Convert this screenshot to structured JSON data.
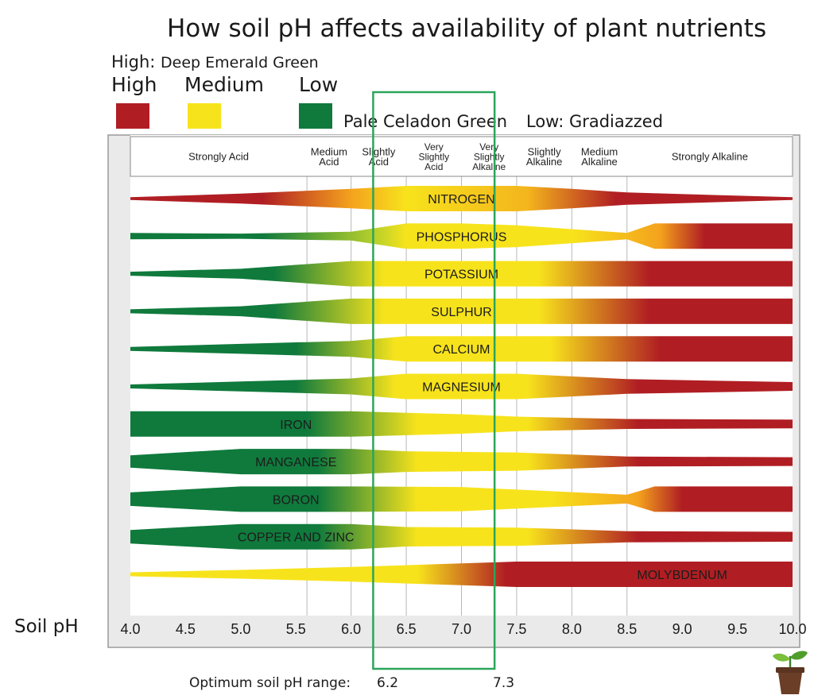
{
  "title": "How soil pH affects availability of plant nutrients",
  "legend_note_prefix": "High:",
  "legend_note_suffix": "Deep Emerald Green",
  "legend": [
    {
      "label": "High",
      "color": "#b01e23"
    },
    {
      "label": "Medium",
      "color": "#f7e31c"
    },
    {
      "label": "Low",
      "color": "#0f7a3c"
    }
  ],
  "pale_note": "Pale Celadon Green",
  "low_note": "Low: Gradiazzed",
  "soil_ph_label": "Soil pH",
  "optimum_label": "Optimum soil pH range:",
  "optimum_min": "6.2",
  "optimum_max": "7.3",
  "chart_data": {
    "type": "area",
    "title": "How soil pH affects availability of plant nutrients",
    "xlabel": "Soil pH",
    "xlim": [
      4.0,
      10.0
    ],
    "x_ticks": [
      "4.0",
      "4.5",
      "5.0",
      "5.5",
      "6.0",
      "6.5",
      "7.0",
      "7.5",
      "8.0",
      "8.5",
      "9.0",
      "9.5",
      "10.0"
    ],
    "ph_ranges": [
      {
        "label": [
          "Strongly Acid"
        ],
        "from": 4.0,
        "to": 5.6
      },
      {
        "label": [
          "Medium",
          "Acid"
        ],
        "from": 5.6,
        "to": 6.0
      },
      {
        "label": [
          "Slightly",
          "Acid"
        ],
        "from": 6.0,
        "to": 6.5
      },
      {
        "label": [
          "Very",
          "Slightly",
          "Acid"
        ],
        "from": 6.5,
        "to": 7.0
      },
      {
        "label": [
          "Very",
          "Slightly",
          "Alkaline"
        ],
        "from": 7.0,
        "to": 7.5
      },
      {
        "label": [
          "Slightly",
          "Alkaline"
        ],
        "from": 7.5,
        "to": 8.0
      },
      {
        "label": [
          "Medium",
          "Alkaline"
        ],
        "from": 8.0,
        "to": 8.5
      },
      {
        "label": [
          "Strongly Alkaline"
        ],
        "from": 8.5,
        "to": 10.0
      }
    ],
    "optimum_range": [
      6.2,
      7.3
    ],
    "series": [
      {
        "name": "NITROGEN",
        "label_x": 7.0,
        "availability": [
          [
            4.0,
            0.05
          ],
          [
            5.0,
            0.35
          ],
          [
            6.0,
            0.75
          ],
          [
            6.5,
            1.0
          ],
          [
            7.5,
            1.0
          ],
          [
            8.0,
            0.75
          ],
          [
            8.5,
            0.45
          ],
          [
            10.0,
            0.05
          ]
        ],
        "color_stops": [
          [
            4.0,
            "#b01e23"
          ],
          [
            5.2,
            "#b01e23"
          ],
          [
            6.0,
            "#f4a21d"
          ],
          [
            6.5,
            "#f7e31c"
          ],
          [
            7.6,
            "#f4b51d"
          ],
          [
            8.4,
            "#b01e23"
          ],
          [
            10.0,
            "#b01e23"
          ]
        ]
      },
      {
        "name": "PHOSPHORUS",
        "label_x": 7.0,
        "availability": [
          [
            4.0,
            0.2
          ],
          [
            5.0,
            0.15
          ],
          [
            6.0,
            0.3
          ],
          [
            6.5,
            1.0
          ],
          [
            7.0,
            1.0
          ],
          [
            7.5,
            0.85
          ],
          [
            8.5,
            0.2
          ],
          [
            8.75,
            1.0
          ],
          [
            10.0,
            1.0
          ]
        ],
        "color_stops": [
          [
            4.0,
            "#0f7a3c"
          ],
          [
            5.2,
            "#0f7a3c"
          ],
          [
            6.2,
            "#b5cf2c"
          ],
          [
            6.5,
            "#f7e31c"
          ],
          [
            8.0,
            "#f7e31c"
          ],
          [
            8.8,
            "#f4a21d"
          ],
          [
            9.2,
            "#b01e23"
          ],
          [
            10.0,
            "#b01e23"
          ]
        ]
      },
      {
        "name": "POTASSIUM",
        "label_x": 7.0,
        "availability": [
          [
            4.0,
            0.1
          ],
          [
            5.0,
            0.35
          ],
          [
            6.0,
            1.0
          ],
          [
            10.0,
            1.0
          ]
        ],
        "color_stops": [
          [
            4.0,
            "#0f7a3c"
          ],
          [
            5.3,
            "#0f7a3c"
          ],
          [
            6.3,
            "#f7e31c"
          ],
          [
            7.7,
            "#f7e31c"
          ],
          [
            8.7,
            "#b01e23"
          ],
          [
            10.0,
            "#b01e23"
          ]
        ]
      },
      {
        "name": "SULPHUR",
        "label_x": 7.0,
        "availability": [
          [
            4.0,
            0.1
          ],
          [
            5.0,
            0.35
          ],
          [
            6.0,
            1.0
          ],
          [
            10.0,
            1.0
          ]
        ],
        "color_stops": [
          [
            4.0,
            "#0f7a3c"
          ],
          [
            5.3,
            "#0f7a3c"
          ],
          [
            6.3,
            "#f7e31c"
          ],
          [
            7.7,
            "#f7e31c"
          ],
          [
            8.7,
            "#b01e23"
          ],
          [
            10.0,
            "#b01e23"
          ]
        ]
      },
      {
        "name": "CALCIUM",
        "label_x": 7.0,
        "availability": [
          [
            4.0,
            0.1
          ],
          [
            5.0,
            0.35
          ],
          [
            6.0,
            0.6
          ],
          [
            6.5,
            1.0
          ],
          [
            10.0,
            1.0
          ]
        ],
        "color_stops": [
          [
            4.0,
            "#0f7a3c"
          ],
          [
            5.5,
            "#0f7a3c"
          ],
          [
            6.4,
            "#f7e31c"
          ],
          [
            7.8,
            "#f7e31c"
          ],
          [
            8.8,
            "#b01e23"
          ],
          [
            10.0,
            "#b01e23"
          ]
        ]
      },
      {
        "name": "MAGNESIUM",
        "label_x": 7.0,
        "availability": [
          [
            4.0,
            0.1
          ],
          [
            5.0,
            0.35
          ],
          [
            6.0,
            0.6
          ],
          [
            6.5,
            1.0
          ],
          [
            7.5,
            1.0
          ],
          [
            8.5,
            0.55
          ],
          [
            10.0,
            0.3
          ]
        ],
        "color_stops": [
          [
            4.0,
            "#0f7a3c"
          ],
          [
            5.5,
            "#0f7a3c"
          ],
          [
            6.4,
            "#f7e31c"
          ],
          [
            7.6,
            "#f7e31c"
          ],
          [
            8.6,
            "#b01e23"
          ],
          [
            10.0,
            "#b01e23"
          ]
        ]
      },
      {
        "name": "IRON",
        "label_x": 5.5,
        "availability": [
          [
            4.0,
            1.0
          ],
          [
            6.0,
            1.0
          ],
          [
            7.0,
            0.75
          ],
          [
            7.5,
            0.55
          ],
          [
            8.5,
            0.35
          ],
          [
            10.0,
            0.3
          ]
        ],
        "color_stops": [
          [
            4.0,
            "#0f7a3c"
          ],
          [
            5.6,
            "#0f7a3c"
          ],
          [
            6.6,
            "#f7e31c"
          ],
          [
            7.6,
            "#f7e31c"
          ],
          [
            8.6,
            "#b01e23"
          ],
          [
            10.0,
            "#b01e23"
          ]
        ]
      },
      {
        "name": "MANGANESE",
        "label_x": 5.5,
        "availability": [
          [
            4.0,
            0.45
          ],
          [
            5.0,
            1.0
          ],
          [
            6.0,
            1.0
          ],
          [
            6.5,
            0.8
          ],
          [
            7.5,
            0.7
          ],
          [
            8.5,
            0.35
          ],
          [
            10.0,
            0.3
          ]
        ],
        "color_stops": [
          [
            4.0,
            "#0f7a3c"
          ],
          [
            5.7,
            "#0f7a3c"
          ],
          [
            6.6,
            "#f7e31c"
          ],
          [
            7.6,
            "#f7e31c"
          ],
          [
            8.6,
            "#b01e23"
          ],
          [
            10.0,
            "#b01e23"
          ]
        ]
      },
      {
        "name": "BORON",
        "label_x": 5.5,
        "availability": [
          [
            4.0,
            0.5
          ],
          [
            5.0,
            1.0
          ],
          [
            6.0,
            1.0
          ],
          [
            7.0,
            0.95
          ],
          [
            8.5,
            0.3
          ],
          [
            8.75,
            1.0
          ],
          [
            10.0,
            1.0
          ]
        ],
        "color_stops": [
          [
            4.0,
            "#0f7a3c"
          ],
          [
            5.7,
            "#0f7a3c"
          ],
          [
            6.6,
            "#f7e31c"
          ],
          [
            7.8,
            "#f7e31c"
          ],
          [
            8.6,
            "#f4a21d"
          ],
          [
            9.0,
            "#b01e23"
          ],
          [
            10.0,
            "#b01e23"
          ]
        ]
      },
      {
        "name": "COPPER AND ZINC",
        "label_x": 5.5,
        "availability": [
          [
            4.0,
            0.5
          ],
          [
            5.0,
            1.0
          ],
          [
            6.0,
            1.0
          ],
          [
            6.5,
            0.75
          ],
          [
            7.5,
            0.7
          ],
          [
            8.5,
            0.4
          ],
          [
            10.0,
            0.35
          ]
        ],
        "color_stops": [
          [
            4.0,
            "#0f7a3c"
          ],
          [
            5.7,
            "#0f7a3c"
          ],
          [
            6.6,
            "#f7e31c"
          ],
          [
            7.6,
            "#f7e31c"
          ],
          [
            8.6,
            "#b01e23"
          ],
          [
            10.0,
            "#b01e23"
          ]
        ]
      },
      {
        "name": "MOLYBDENUM",
        "label_x": 9.0,
        "availability": [
          [
            4.0,
            0.1
          ],
          [
            5.0,
            0.3
          ],
          [
            6.0,
            0.55
          ],
          [
            7.0,
            0.85
          ],
          [
            7.5,
            1.0
          ],
          [
            10.0,
            1.0
          ]
        ],
        "color_stops": [
          [
            4.0,
            "#f7e31c"
          ],
          [
            6.6,
            "#f7e31c"
          ],
          [
            7.4,
            "#b01e23"
          ],
          [
            10.0,
            "#b01e23"
          ]
        ]
      }
    ]
  }
}
